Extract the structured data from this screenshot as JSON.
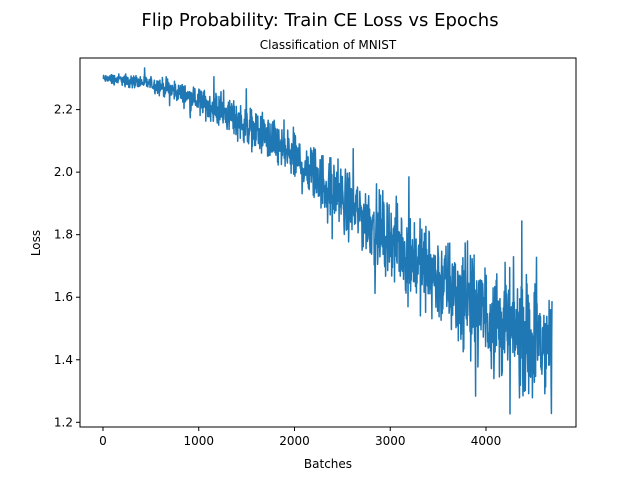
{
  "chart_data": {
    "type": "line",
    "title": "Flip Probability: Train CE Loss vs Epochs",
    "subtitle": "Classification of MNIST",
    "xlabel": "Batches",
    "ylabel": "Loss",
    "xlim": [
      -240,
      4940
    ],
    "ylim": [
      1.185,
      2.365
    ],
    "xticks": [
      0,
      1000,
      2000,
      3000,
      4000
    ],
    "yticks": [
      1.2,
      1.4,
      1.6,
      1.8,
      2.0,
      2.2
    ],
    "grid": false,
    "series": [
      {
        "color": "#1f77b4",
        "x": [
          0,
          100,
          200,
          300,
          400,
          500,
          600,
          700,
          800,
          900,
          1000,
          1100,
          1200,
          1300,
          1400,
          1500,
          1600,
          1700,
          1800,
          1900,
          2000,
          2100,
          2200,
          2300,
          2400,
          2500,
          2600,
          2700,
          2800,
          2900,
          3000,
          3100,
          3200,
          3300,
          3400,
          3500,
          3600,
          3700,
          3800,
          3900,
          4000,
          4100,
          4200,
          4300,
          4400,
          4500,
          4600,
          4690
        ],
        "y": [
          2.3,
          2.298,
          2.296,
          2.292,
          2.288,
          2.282,
          2.274,
          2.265,
          2.254,
          2.24,
          2.226,
          2.214,
          2.2,
          2.184,
          2.168,
          2.15,
          2.132,
          2.112,
          2.09,
          2.068,
          2.045,
          2.02,
          1.994,
          1.968,
          1.942,
          1.916,
          1.89,
          1.864,
          1.838,
          1.812,
          1.786,
          1.762,
          1.738,
          1.712,
          1.686,
          1.66,
          1.636,
          1.612,
          1.59,
          1.568,
          1.546,
          1.526,
          1.508,
          1.49,
          1.476,
          1.462,
          1.452,
          1.445
        ],
        "spread": [
          0.006,
          0.008,
          0.009,
          0.01,
          0.011,
          0.012,
          0.014,
          0.015,
          0.016,
          0.018,
          0.02,
          0.022,
          0.024,
          0.026,
          0.028,
          0.03,
          0.032,
          0.034,
          0.036,
          0.038,
          0.04,
          0.042,
          0.044,
          0.046,
          0.048,
          0.05,
          0.052,
          0.054,
          0.056,
          0.058,
          0.06,
          0.062,
          0.064,
          0.066,
          0.068,
          0.07,
          0.072,
          0.074,
          0.076,
          0.078,
          0.08,
          0.082,
          0.084,
          0.086,
          0.088,
          0.09,
          0.092,
          0.094
        ]
      }
    ]
  }
}
